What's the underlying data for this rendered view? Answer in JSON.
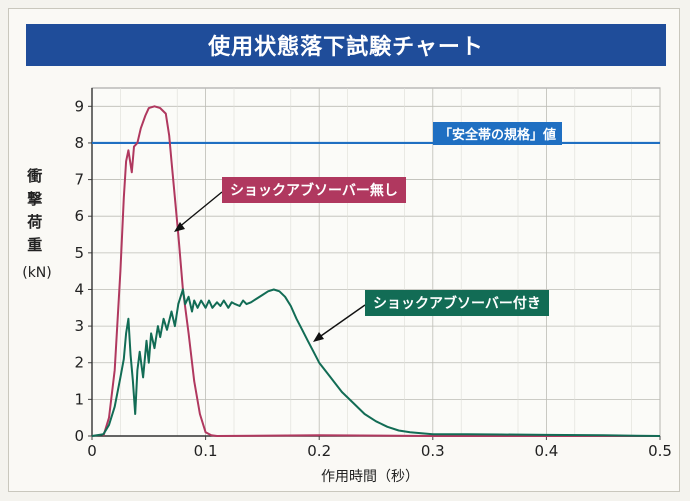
{
  "chart_data": {
    "type": "line",
    "title": "使用状態落下試験チャート",
    "xlabel": "作用時間（秒）",
    "ylabel_chars": [
      "衝",
      "撃",
      "荷",
      "重"
    ],
    "ylabel_unit": "(kN)",
    "xlim": [
      0,
      0.5
    ],
    "ylim": [
      0,
      9.5
    ],
    "x_ticks": [
      0,
      0.1,
      0.2,
      0.3,
      0.4,
      0.5
    ],
    "x_tick_labels": [
      "0",
      "0.1",
      "0.2",
      "0.3",
      "0.4",
      "0.5"
    ],
    "y_ticks": [
      0,
      1,
      2,
      3,
      4,
      5,
      6,
      7,
      8,
      9
    ],
    "y_tick_labels": [
      "0",
      "1",
      "2",
      "3",
      "4",
      "5",
      "6",
      "7",
      "8",
      "9"
    ],
    "grid": true,
    "reference_line": {
      "label": "「安全帯の規格」値",
      "y": 8,
      "color": "#1f6fc2"
    },
    "series": [
      {
        "name": "ショックアブソーバー無し",
        "color": "#b0385f",
        "x": [
          0.01,
          0.015,
          0.02,
          0.025,
          0.028,
          0.03,
          0.032,
          0.035,
          0.037,
          0.04,
          0.043,
          0.047,
          0.05,
          0.055,
          0.06,
          0.065,
          0.068,
          0.07,
          0.073,
          0.076,
          0.08,
          0.085,
          0.09,
          0.095,
          0.1,
          0.105,
          0.11,
          0.2,
          0.3,
          0.4,
          0.5
        ],
        "y": [
          0,
          0.5,
          1.8,
          4.5,
          6.5,
          7.5,
          7.8,
          7.2,
          7.9,
          8.0,
          8.4,
          8.75,
          8.95,
          9.0,
          8.95,
          8.8,
          8.2,
          7.5,
          6.5,
          5.5,
          4.0,
          2.8,
          1.5,
          0.6,
          0.1,
          0.02,
          0,
          0.02,
          0,
          0,
          0
        ]
      },
      {
        "name": "ショックアブソーバー付き",
        "color": "#126c55",
        "x": [
          0,
          0.01,
          0.015,
          0.02,
          0.025,
          0.028,
          0.03,
          0.032,
          0.034,
          0.036,
          0.038,
          0.04,
          0.042,
          0.045,
          0.048,
          0.05,
          0.052,
          0.055,
          0.058,
          0.06,
          0.063,
          0.066,
          0.07,
          0.073,
          0.076,
          0.08,
          0.082,
          0.085,
          0.088,
          0.09,
          0.093,
          0.096,
          0.1,
          0.103,
          0.106,
          0.11,
          0.113,
          0.116,
          0.12,
          0.123,
          0.126,
          0.13,
          0.133,
          0.136,
          0.14,
          0.145,
          0.15,
          0.155,
          0.16,
          0.165,
          0.17,
          0.175,
          0.18,
          0.185,
          0.19,
          0.195,
          0.2,
          0.21,
          0.22,
          0.23,
          0.24,
          0.25,
          0.26,
          0.27,
          0.28,
          0.3,
          0.33,
          0.36,
          0.4,
          0.45,
          0.5
        ],
        "y": [
          0,
          0.05,
          0.3,
          0.8,
          1.6,
          2.1,
          2.8,
          3.2,
          2.2,
          1.5,
          0.6,
          1.8,
          2.3,
          1.6,
          2.6,
          2.0,
          2.8,
          2.4,
          3.0,
          2.7,
          3.2,
          2.9,
          3.4,
          3.0,
          3.6,
          4.0,
          3.6,
          3.8,
          3.4,
          3.7,
          3.5,
          3.7,
          3.5,
          3.7,
          3.5,
          3.65,
          3.55,
          3.7,
          3.5,
          3.65,
          3.6,
          3.55,
          3.7,
          3.6,
          3.65,
          3.75,
          3.85,
          3.95,
          4.0,
          3.95,
          3.8,
          3.55,
          3.2,
          2.9,
          2.6,
          2.3,
          2.0,
          1.6,
          1.2,
          0.9,
          0.6,
          0.4,
          0.25,
          0.15,
          0.1,
          0.05,
          0.05,
          0.04,
          0.03,
          0.02,
          0.0
        ]
      }
    ]
  }
}
